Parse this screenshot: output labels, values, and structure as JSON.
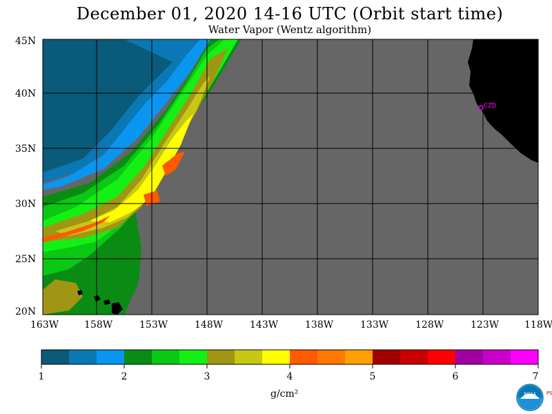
{
  "header": {
    "title": "December 01, 2020  14-16 UTC  (Orbit start time)",
    "subtitle": "Water Vapor (Wentz algorithm)"
  },
  "map": {
    "lat_labels": [
      "45N",
      "40N",
      "35N",
      "30N",
      "25N",
      "20N"
    ],
    "lon_labels": [
      "163W",
      "158W",
      "153W",
      "148W",
      "143W",
      "138W",
      "133W",
      "128W",
      "123W",
      "118W"
    ],
    "station_label": "CZD",
    "colors": {
      "no_data": "#666666",
      "land": "#000000",
      "grid": "#000000",
      "station": "#ff00ff"
    }
  },
  "colorbar": {
    "colors": [
      "#0a5a7a",
      "#0a78b4",
      "#0a96f0",
      "#0a8c14",
      "#0ac814",
      "#14f014",
      "#a09614",
      "#c8c814",
      "#ffff00",
      "#ff5a00",
      "#ff7800",
      "#ffa000",
      "#a00000",
      "#c80000",
      "#ff0000",
      "#a000a0",
      "#c800c8",
      "#ff00ff"
    ],
    "tick_labels": [
      "1",
      "2",
      "3",
      "4",
      "5",
      "6",
      "7"
    ],
    "units": "g/cm²"
  },
  "logo": {
    "text": "NOAA",
    "side_text": "PSL"
  }
}
